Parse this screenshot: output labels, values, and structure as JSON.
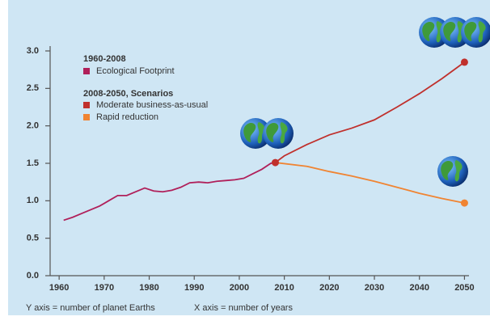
{
  "chart_data": {
    "type": "line",
    "legend_groups": [
      "1960-2008",
      "2008-2050, Scenarios"
    ],
    "annotations": [
      "Y axis = number of planet Earths",
      "X axis = number of years"
    ],
    "xlim": [
      1958,
      2051
    ],
    "xticks": [
      1960,
      1970,
      1980,
      1990,
      2000,
      2010,
      2020,
      2030,
      2040,
      2050
    ],
    "ylim": [
      0,
      3
    ],
    "yticks": [
      {
        "value": 0,
        "label": "0.0"
      },
      0.5,
      {
        "value": 1,
        "label": "1.0"
      },
      1.5,
      {
        "value": 2,
        "label": "2.0"
      },
      2.5,
      {
        "value": 3,
        "label": "3.0"
      }
    ],
    "series": [
      {
        "name": "Ecological Footprint",
        "color": "#b0205a",
        "x": [
          1961,
          1963,
          1965,
          1967,
          1969,
          1971,
          1973,
          1975,
          1977,
          1979,
          1981,
          1983,
          1985,
          1987,
          1989,
          1991,
          1993,
          1995,
          1997,
          1999,
          2001,
          2003,
          2005,
          2007,
          2008
        ],
        "values": [
          0.74,
          0.78,
          0.83,
          0.88,
          0.93,
          1.0,
          1.07,
          1.07,
          1.12,
          1.17,
          1.13,
          1.12,
          1.14,
          1.18,
          1.24,
          1.25,
          1.24,
          1.26,
          1.27,
          1.28,
          1.3,
          1.36,
          1.42,
          1.5,
          1.51
        ]
      },
      {
        "name": "Moderate business-as-usual",
        "color": "#c0302c",
        "x": [
          2008,
          2010,
          2015,
          2020,
          2025,
          2030,
          2035,
          2040,
          2045,
          2050
        ],
        "values": [
          1.51,
          1.6,
          1.75,
          1.88,
          1.97,
          2.08,
          2.25,
          2.43,
          2.63,
          2.85
        ]
      },
      {
        "name": "Rapid reduction",
        "color": "#f08432",
        "x": [
          2008,
          2015,
          2020,
          2025,
          2030,
          2035,
          2040,
          2045,
          2050
        ],
        "values": [
          1.51,
          1.46,
          1.39,
          1.33,
          1.26,
          1.18,
          1.1,
          1.03,
          0.97
        ]
      }
    ]
  }
}
